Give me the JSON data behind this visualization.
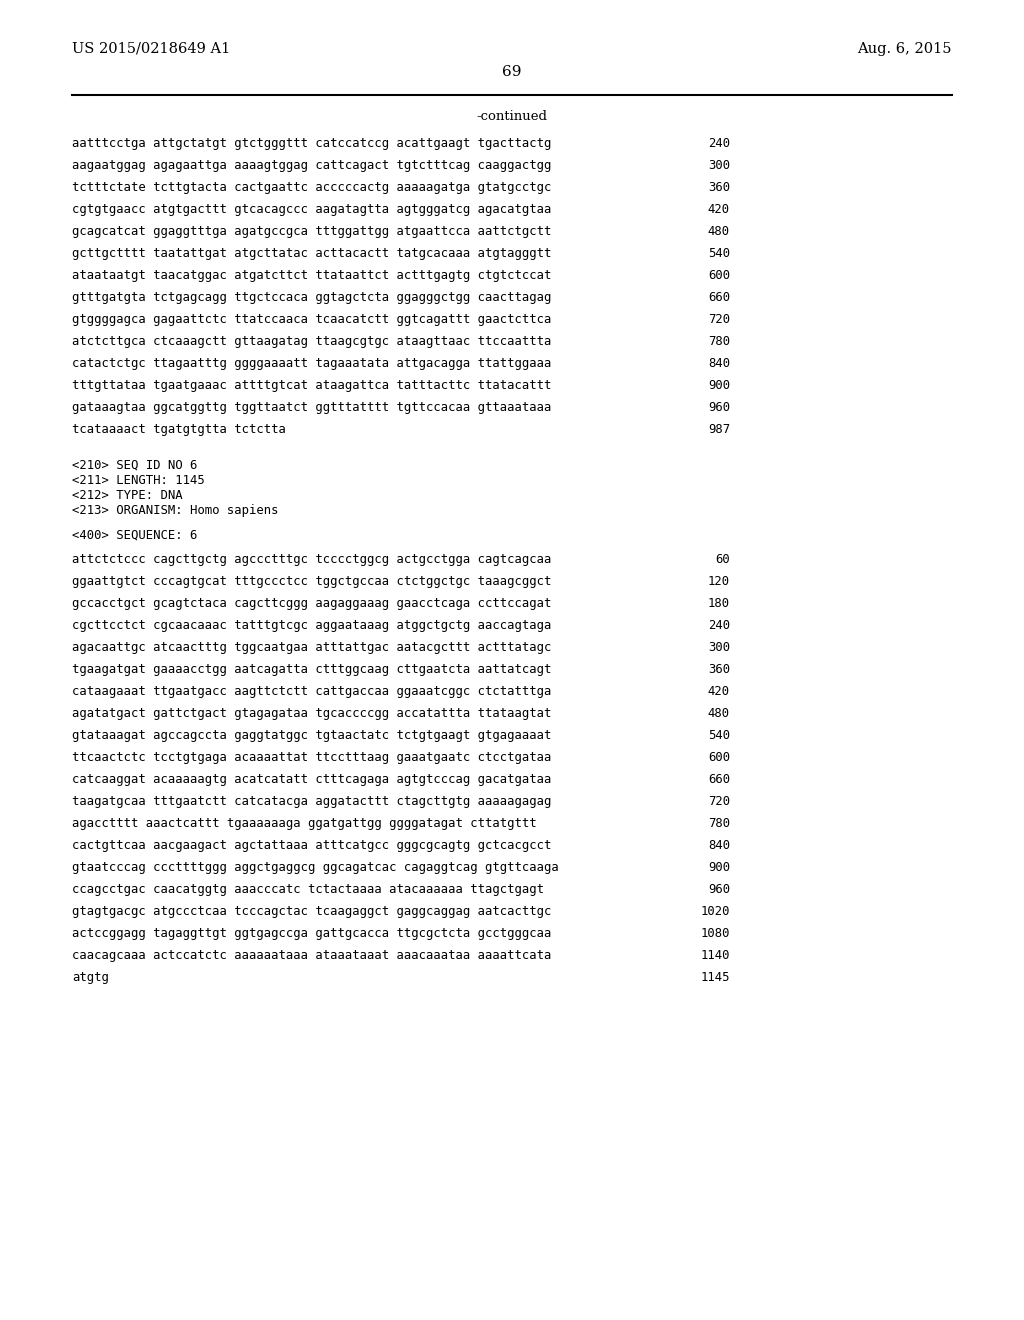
{
  "header_left": "US 2015/0218649 A1",
  "header_right": "Aug. 6, 2015",
  "page_number": "69",
  "continued_text": "-continued",
  "background_color": "#ffffff",
  "text_color": "#000000",
  "seq_lines_part1": [
    [
      "aatttcctga attgctatgt gtctgggttt catccatccg acattgaagt tgacttactg",
      "240"
    ],
    [
      "aagaatggag agagaattga aaaagtggag cattcagact tgtctttcag caaggactgg",
      "300"
    ],
    [
      "tctttctate tcttgtacta cactgaattc acccccactg aaaaagatga gtatgcctgc",
      "360"
    ],
    [
      "cgtgtgaacc atgtgacttt gtcacagccc aagatagtta agtgggatcg agacatgtaa",
      "420"
    ],
    [
      "gcagcatcat ggaggtttga agatgccgca tttggattgg atgaattcca aattctgctt",
      "480"
    ],
    [
      "gcttgctttt taatattgat atgcttatac acttacactt tatgcacaaa atgtagggtt",
      "540"
    ],
    [
      "ataataatgt taacatggac atgatcttct ttataattct actttgagtg ctgtctccat",
      "600"
    ],
    [
      "gtttgatgta tctgagcagg ttgctccaca ggtagctcta ggagggctgg caacttagag",
      "660"
    ],
    [
      "gtggggagca gagaattctc ttatccaaca tcaacatctt ggtcagattt gaactcttca",
      "720"
    ],
    [
      "atctcttgca ctcaaagctt gttaagatag ttaagcgtgc ataagttaac ttccaattta",
      "780"
    ],
    [
      "catactctgc ttagaatttg ggggaaaatt tagaaatata attgacagga ttattggaaa",
      "840"
    ],
    [
      "tttgttataa tgaatgaaac attttgtcat ataagattca tatttacttc ttatacattt",
      "900"
    ],
    [
      "gataaagtaa ggcatggttg tggttaatct ggtttatttt tgttccacaa gttaaataaa",
      "960"
    ],
    [
      "tcataaaact tgatgtgtta tctctta",
      "987"
    ]
  ],
  "seq_info": [
    "<210> SEQ ID NO 6",
    "<211> LENGTH: 1145",
    "<212> TYPE: DNA",
    "<213> ORGANISM: Homo sapiens"
  ],
  "seq_label": "<400> SEQUENCE: 6",
  "seq_lines_part2": [
    [
      "attctctccc cagcttgctg agccctttgc tcccctggcg actgcctgga cagtcagcaa",
      "60"
    ],
    [
      "ggaattgtct cccagtgcat tttgccctcc tggctgccaa ctctggctgc taaagcggct",
      "120"
    ],
    [
      "gccacctgct gcagtctaca cagcttcggg aagaggaaag gaacctcaga ccttccagat",
      "180"
    ],
    [
      "cgcttcctct cgcaacaaac tatttgtcgc aggaataaag atggctgctg aaccagtaga",
      "240"
    ],
    [
      "agacaattgc atcaactttg tggcaatgaa atttattgac aatacgcttt actttatagc",
      "300"
    ],
    [
      "tgaagatgat gaaaacctgg aatcagatta ctttggcaag cttgaatcta aattatcagt",
      "360"
    ],
    [
      "cataagaaat ttgaatgacc aagttctctt cattgaccaa ggaaatcggc ctctatttga",
      "420"
    ],
    [
      "agatatgact gattctgact gtagagataa tgcaccccgg accatattta ttataagtat",
      "480"
    ],
    [
      "gtataaagat agccagccta gaggtatggc tgtaactatc tctgtgaagt gtgagaaaat",
      "540"
    ],
    [
      "ttcaactctc tcctgtgaga acaaaattat ttcctttaag gaaatgaatc ctcctgataa",
      "600"
    ],
    [
      "catcaaggat acaaaaagtg acatcatatt ctttcagaga agtgtcccag gacatgataa",
      "660"
    ],
    [
      "taagatgcaa tttgaatctt catcatacga aggatacttt ctagcttgtg aaaaagagag",
      "720"
    ],
    [
      "agacctttt aaactcattt tgaaaaaaga ggatgattgg ggggatagat cttatgttt",
      "780"
    ],
    [
      "cactgttcaa aacgaagact agctattaaa atttcatgcc gggcgcagtg gctcacgcct",
      "840"
    ],
    [
      "gtaatcccag cccttttggg aggctgaggcg ggcagatcac cagaggtcag gtgttcaaga",
      "900"
    ],
    [
      "ccagcctgac caacatggtg aaacccatc tctactaaaa atacaaaaaa ttagctgagt",
      "960"
    ],
    [
      "gtagtgacgc atgccctcaa tcccagctac tcaagaggct gaggcaggag aatcacttgc",
      "1020"
    ],
    [
      "actccggagg tagaggttgt ggtgagccga gattgcacca ttgcgctcta gcctgggcaa",
      "1080"
    ],
    [
      "caacagcaaa actccatctc aaaaaataaa ataaataaat aaacaaataa aaaattcata",
      "1140"
    ],
    [
      "atgtg",
      "1145"
    ]
  ]
}
